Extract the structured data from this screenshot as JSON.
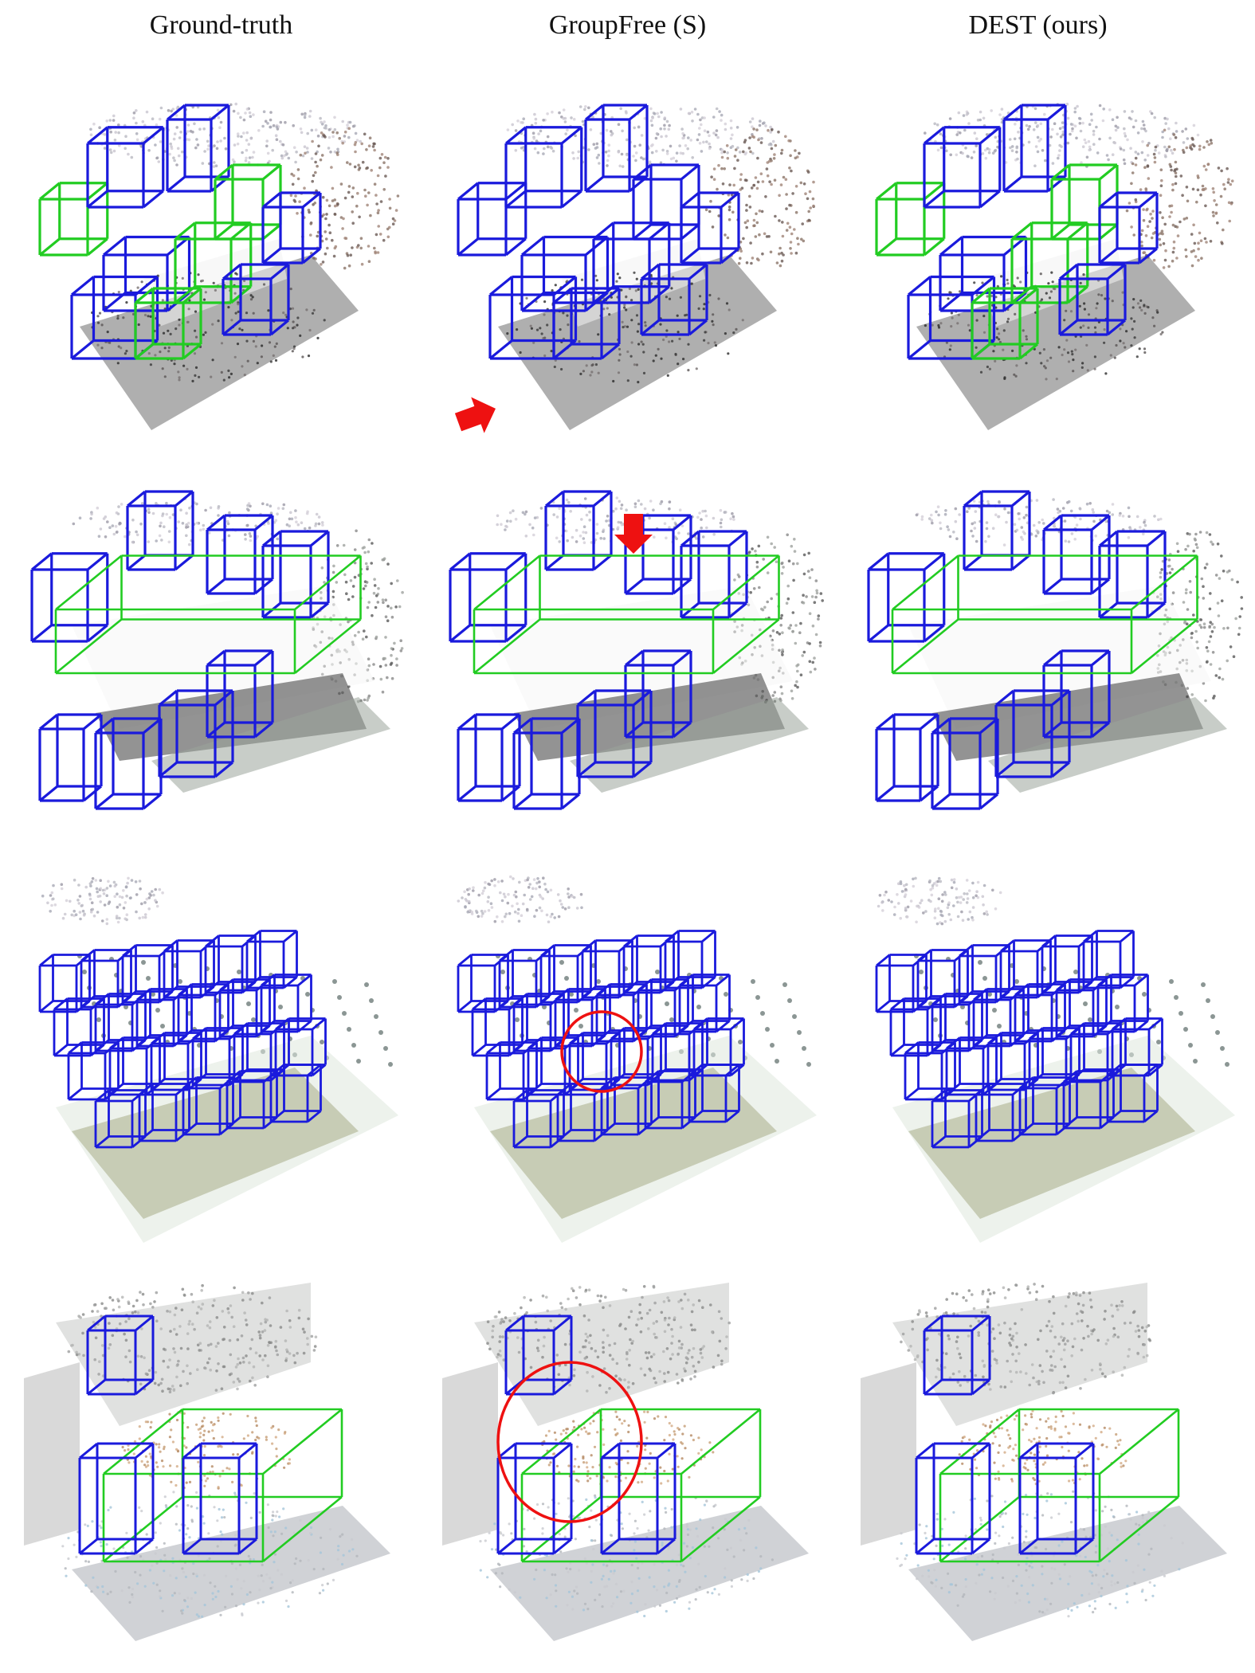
{
  "headers": [
    "Ground-truth",
    "GroupFree (S)",
    "DEST (ours)"
  ],
  "colors": {
    "gt_box": "#22cc22",
    "pred_box": "#1a1adc",
    "highlight": "#ee1111",
    "background": "#ffffff"
  },
  "rows": [
    {
      "scene": "room-with-table-and-chairs",
      "annotation": "arrow",
      "annotation_column": 1
    },
    {
      "scene": "conference-table",
      "annotation": "arrow",
      "annotation_column": 1
    },
    {
      "scene": "classroom-chair-grid",
      "annotation": "circle",
      "annotation_column": 1
    },
    {
      "scene": "table-with-chairs",
      "annotation": "circle",
      "annotation_column": 1
    }
  ]
}
